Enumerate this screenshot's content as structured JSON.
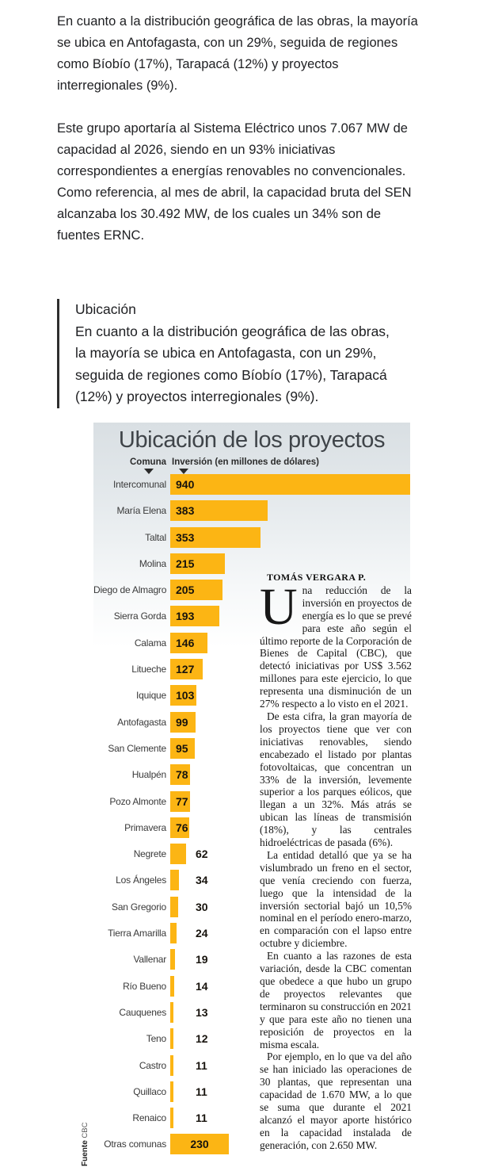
{
  "intro": {
    "paragraphs": [
      [
        "En cuanto a la distribución geográfica de las obras, la mayoría",
        "se ubica en Antofagasta, con un 29%, seguida de regiones",
        "como Bíobío (17%), Tarapacá (12%) y proyectos",
        "interregionales (9%)."
      ],
      [
        "Este grupo aportaría al Sistema Eléctrico unos 7.067 MW de",
        "capacidad al 2026, siendo en un 93% iniciativas",
        "correspondientes a energías renovables no convencionales.",
        "Como referencia, al mes de abril, la capacidad bruta del SEN",
        "alcanzaba los 30.492 MW, de los cuales un 34% son de",
        "fuentes ERNC."
      ]
    ]
  },
  "quote": {
    "heading": "Ubicación",
    "lines": [
      "En cuanto a la distribución geográfica de las obras,",
      "la mayoría se ubica en Antofagasta, con un 29%,",
      "seguida de regiones como Bíobío (17%), Tarapacá",
      "(12%) y proyectos interregionales (9%)."
    ]
  },
  "infographic": {
    "title": "Ubicación de los proyectos",
    "col_comuna": "Comuna",
    "col_inversion": "Inversión (en millones de dólares)",
    "source_label": "Fuente",
    "source_value": "CBC",
    "bar_color": "#FCB514",
    "rows": [
      {
        "label": "Intercomunal",
        "value": 940
      },
      {
        "label": "María Elena",
        "value": 383
      },
      {
        "label": "Taltal",
        "value": 353
      },
      {
        "label": "Molina",
        "value": 215
      },
      {
        "label": "Diego de Almagro",
        "value": 205
      },
      {
        "label": "Sierra Gorda",
        "value": 193
      },
      {
        "label": "Calama",
        "value": 146
      },
      {
        "label": "Litueche",
        "value": 127
      },
      {
        "label": "Iquique",
        "value": 103
      },
      {
        "label": "Antofagasta",
        "value": 99
      },
      {
        "label": "San Clemente",
        "value": 95
      },
      {
        "label": "Hualpén",
        "value": 78
      },
      {
        "label": "Pozo Almonte",
        "value": 77
      },
      {
        "label": "Primavera",
        "value": 76
      },
      {
        "label": "Negrete",
        "value": 62
      },
      {
        "label": "Los Ángeles",
        "value": 34
      },
      {
        "label": "San Gregorio",
        "value": 30
      },
      {
        "label": "Tierra Amarilla",
        "value": 24
      },
      {
        "label": "Vallenar",
        "value": 19
      },
      {
        "label": "Río Bueno",
        "value": 14
      },
      {
        "label": "Cauquenes",
        "value": 13
      },
      {
        "label": "Teno",
        "value": 12
      },
      {
        "label": "Castro",
        "value": 11
      },
      {
        "label": "Quillaco",
        "value": 11
      },
      {
        "label": "Renaico",
        "value": 11
      },
      {
        "label": "Otras comunas",
        "value": 230
      }
    ]
  },
  "article": {
    "byline": "TOMÁS VERGARA P.",
    "paragraphs": [
      "Una reducción de la inversión en proyectos de energía es lo que se prevé para este año según el último reporte de la Corporación de Bienes de Capital (CBC), que detectó iniciativas por US$ 3.562 millones para este ejercicio, lo que representa una disminución de un 27% respecto a lo visto en el 2021.",
      "De esta cifra, la gran mayoría de los proyectos tiene que ver con iniciativas renovables, siendo encabezado el listado por plantas fotovoltaicas, que concentran un 33% de la inversión, levemente superior a los parques eólicos, que llegan a un 32%. Más atrás se ubican las líneas de transmisión (18%), y las centrales hidroeléctricas de pasada (6%).",
      "La entidad detalló que ya se ha vislumbrado un freno en el sector, que venía creciendo con fuerza, luego que la intensidad de la inversión sectorial bajó un 10,5% nominal en el período enero-marzo, en comparación con el lapso entre octubre y diciembre.",
      "En cuanto a las razones de esta variación, desde la CBC comentan que obedece a que hubo un grupo de proyectos relevantes que terminaron su construcción en 2021 y que para este año no tienen una reposición de proyectos en la misma escala.",
      "Por ejemplo, en lo que va del año se han iniciado las operaciones de 30 plantas, que representan una capacidad de 1.670 MW, a lo que se suma que durante el 2021 alcanzó el mayor aporte histórico en la capacidad instalada de generación, con 2.650 MW."
    ]
  },
  "chart_data": {
    "type": "bar",
    "orientation": "horizontal",
    "title": "Ubicación de los proyectos",
    "xlabel": "Inversión (en millones de dólares)",
    "ylabel": "Comuna",
    "source": "Fuente CBC",
    "bar_color": "#FCB514",
    "xlim": [
      0,
      940
    ],
    "categories": [
      "Intercomunal",
      "María Elena",
      "Taltal",
      "Molina",
      "Diego de Almagro",
      "Sierra Gorda",
      "Calama",
      "Litueche",
      "Iquique",
      "Antofagasta",
      "San Clemente",
      "Hualpén",
      "Pozo Almonte",
      "Primavera",
      "Negrete",
      "Los Ángeles",
      "San Gregorio",
      "Tierra Amarilla",
      "Vallenar",
      "Río Bueno",
      "Cauquenes",
      "Teno",
      "Castro",
      "Quillaco",
      "Renaico",
      "Otras comunas"
    ],
    "values": [
      940,
      383,
      353,
      215,
      205,
      193,
      146,
      127,
      103,
      99,
      95,
      78,
      77,
      76,
      62,
      34,
      30,
      24,
      19,
      14,
      13,
      12,
      11,
      11,
      11,
      230
    ]
  }
}
